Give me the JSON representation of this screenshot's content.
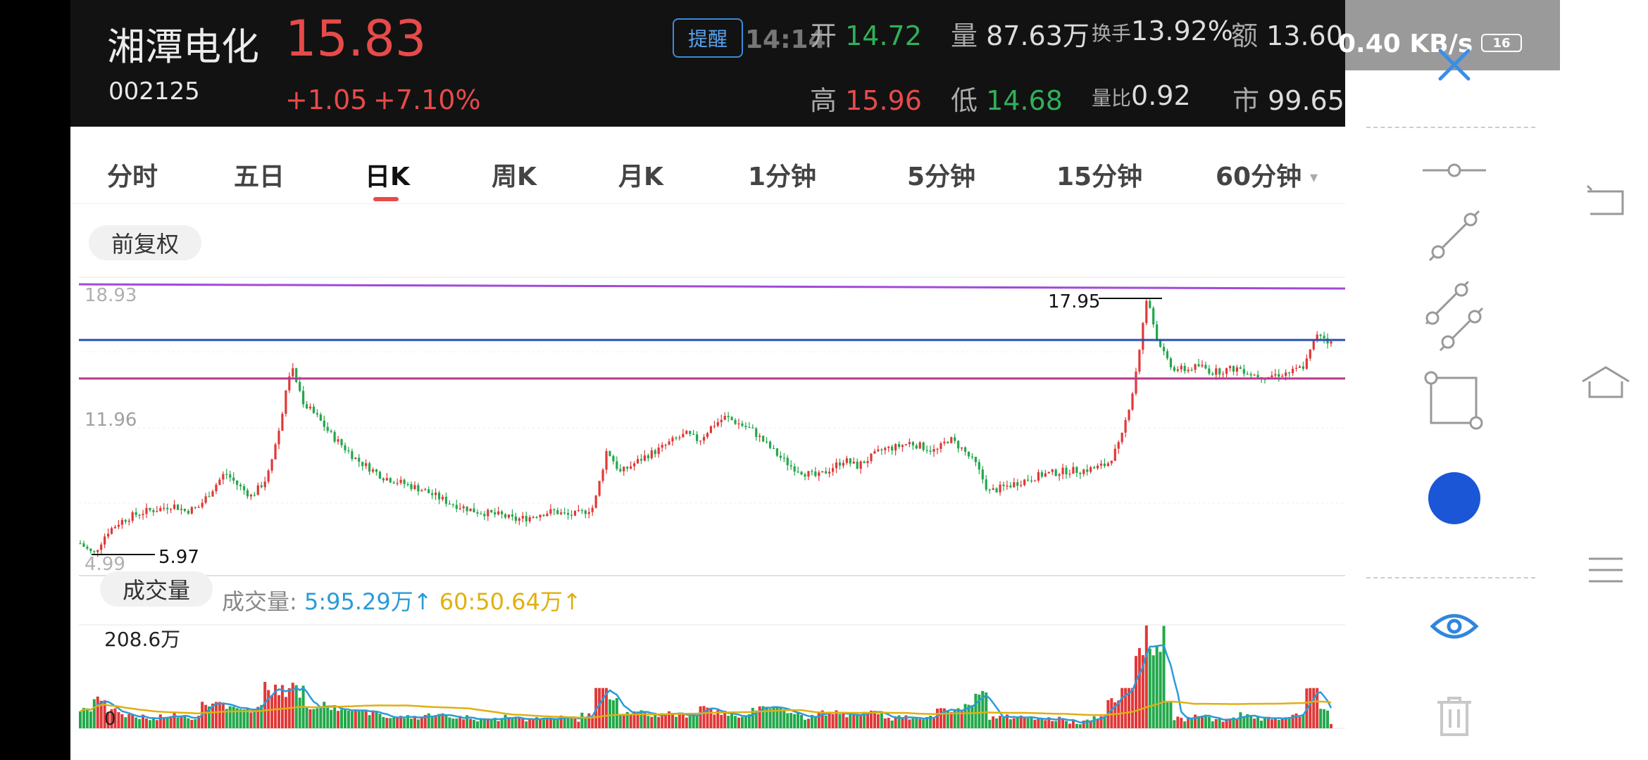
{
  "header": {
    "name": "湘潭电化",
    "code": "002125",
    "price": "15.83",
    "change": "+1.05",
    "change_pct": "+7.10%",
    "alert": "提醒",
    "time": "14:14",
    "open_label": "开",
    "open": "14.72",
    "volume_label": "量",
    "volume": "87.63万",
    "turnover_label": "换手",
    "turnover": "13.92%",
    "amount_label": "额",
    "amount": "13.60",
    "high_label": "高",
    "high": "15.96",
    "low_label": "低",
    "low": "14.68",
    "volratio_label": "量比",
    "volratio": "0.92",
    "mcap_label": "市",
    "mcap": "99.65"
  },
  "tabs": [
    "分时",
    "五日",
    "日K",
    "周K",
    "月K",
    "1分钟",
    "5分钟",
    "15分钟",
    "60分钟"
  ],
  "active_tab": "日K",
  "chart": {
    "adjust_label": "前复权",
    "y_top": "18.93",
    "y_mid": "11.96",
    "y_bottom": "4.99",
    "high_marker": "17.95",
    "low_marker": "5.97",
    "vol_pill": "成交量",
    "vol_legend_label": "成交量:",
    "vol_ma5": "5:95.29万",
    "vol_ma60": "60:50.64万",
    "vol_max": "208.6万",
    "vol_zero": "0"
  },
  "status": {
    "speed": "0.40 KB/s",
    "battery": "16"
  },
  "tools": {
    "close": "close-icon",
    "items": [
      "horizontal-line-icon",
      "segment-icon",
      "parallel-lines-icon",
      "rectangle-icon",
      "color-dot-icon",
      "eye-icon",
      "trash-icon"
    ],
    "color": "#1a56d6"
  },
  "chart_data": {
    "type": "candlestick",
    "title": "",
    "y_ticks": [
      18.93,
      11.96,
      4.99
    ],
    "ylim": [
      4.99,
      18.93
    ],
    "annotations": [
      {
        "label": "17.95",
        "kind": "period-high"
      },
      {
        "label": "5.97",
        "kind": "period-low"
      }
    ],
    "reference_lines": [
      {
        "color": "#a24ad8",
        "value": 18.6
      },
      {
        "color": "#2a4fb5",
        "value": 16.0
      },
      {
        "color": "#b53a8c",
        "value": 14.2
      }
    ],
    "close_trend": [
      6.5,
      5.97,
      7.0,
      7.5,
      7.8,
      8.0,
      8.1,
      8.3,
      8.0,
      8.2,
      9.0,
      9.8,
      9.2,
      8.7,
      9.4,
      11.5,
      14.8,
      13.0,
      12.4,
      11.6,
      11.0,
      10.4,
      10.0,
      9.6,
      9.4,
      9.2,
      9.0,
      8.7,
      8.4,
      8.2,
      8.0,
      7.9,
      7.8,
      7.6,
      7.7,
      7.9,
      8.0,
      7.8,
      7.9,
      8.2,
      10.9,
      9.8,
      10.2,
      10.6,
      10.9,
      11.3,
      11.6,
      11.3,
      12.0,
      12.4,
      12.1,
      11.8,
      11.2,
      10.6,
      10.1,
      9.8,
      9.6,
      10.0,
      10.4,
      10.1,
      10.5,
      10.9,
      11.0,
      11.2,
      11.0,
      10.8,
      11.4,
      10.9,
      10.2,
      8.9,
      9.1,
      9.3,
      9.5,
      9.7,
      9.8,
      9.9,
      9.9,
      10.0,
      10.2,
      11.2,
      13.8,
      17.95,
      15.6,
      14.7,
      14.6,
      14.8,
      14.5,
      14.6,
      14.7,
      14.4,
      14.3,
      14.4,
      14.5,
      14.8,
      16.4,
      15.83
    ],
    "volume_max_label": "208.6万"
  }
}
